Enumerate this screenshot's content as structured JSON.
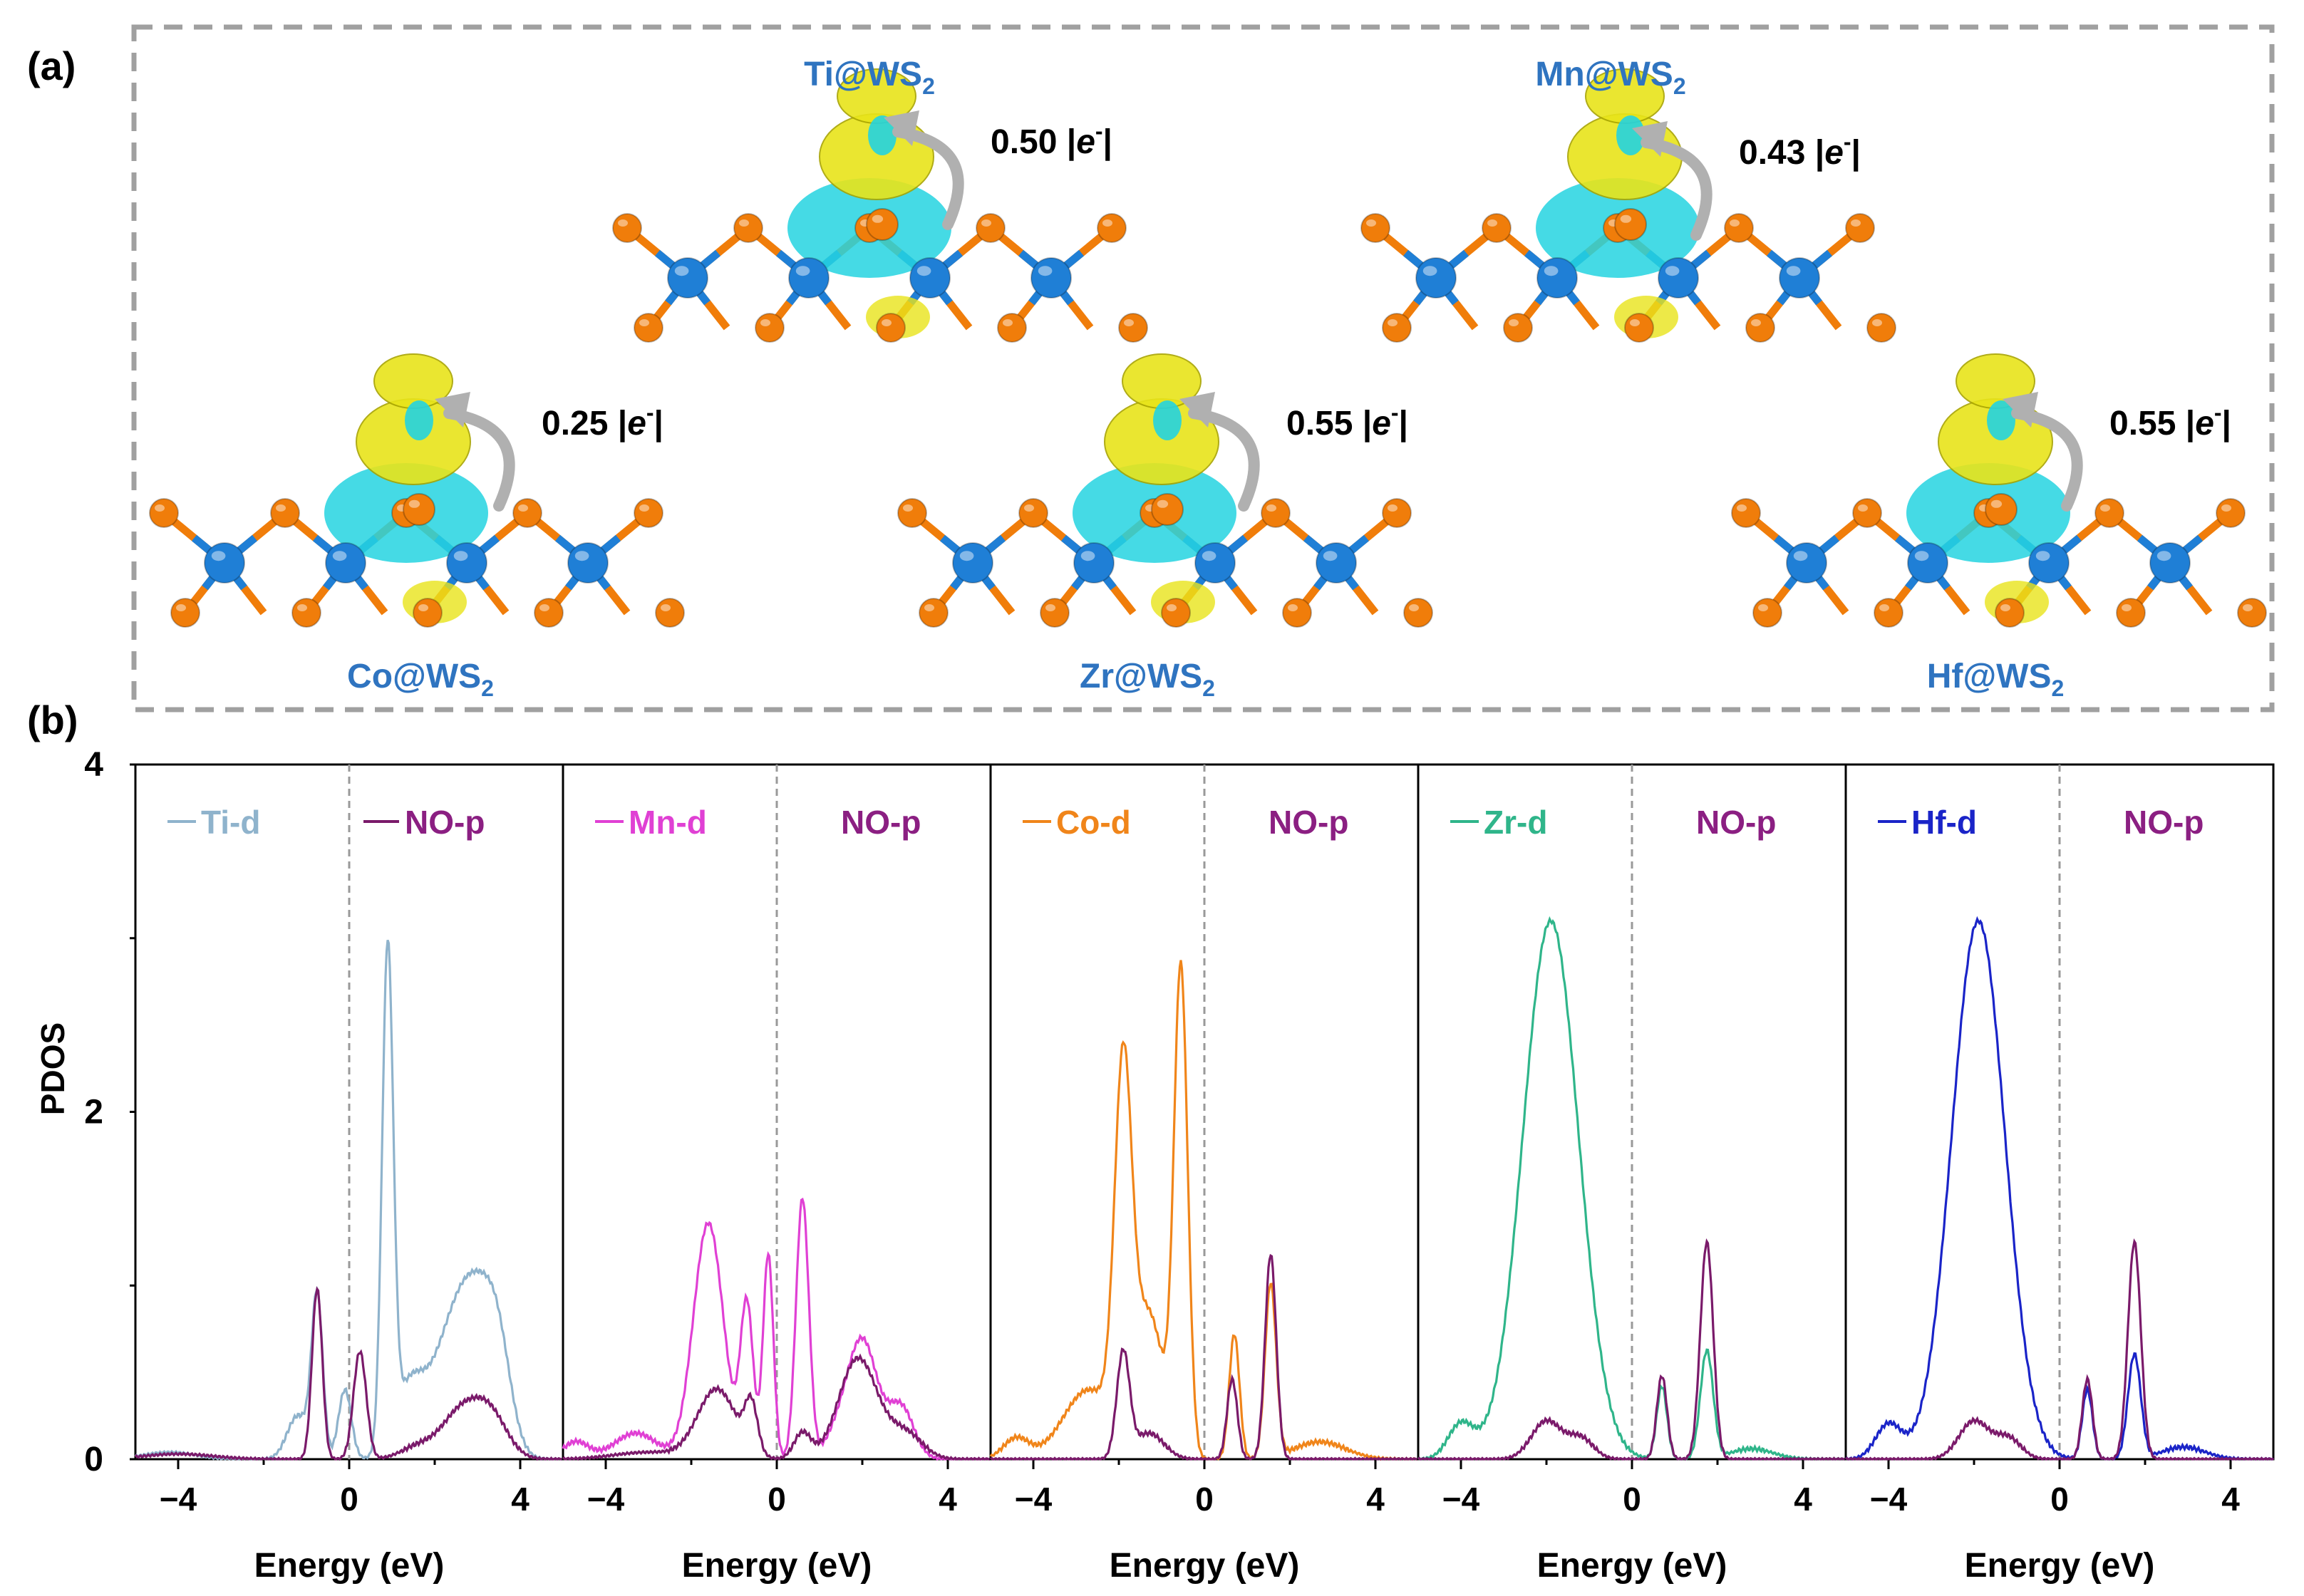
{
  "panel_a": {
    "label": "(a)",
    "structures": [
      {
        "metal": "Ti",
        "suffix": "@WS",
        "sub": "2",
        "charge": "0.50 |",
        "e": "e",
        "sup": "-",
        "close": "|"
      },
      {
        "metal": "Mn",
        "suffix": "@WS",
        "sub": "2",
        "charge": "0.43 |",
        "e": "e",
        "sup": "-",
        "close": "|"
      },
      {
        "metal": "Co",
        "suffix": "@WS",
        "sub": "2",
        "charge": "0.25 |",
        "e": "e",
        "sup": "-",
        "close": "|"
      },
      {
        "metal": "Zr",
        "suffix": "@WS",
        "sub": "2",
        "charge": "0.55 |",
        "e": "e",
        "sup": "-",
        "close": "|"
      },
      {
        "metal": "Hf",
        "suffix": "@WS",
        "sub": "2",
        "charge": "0.55 |",
        "e": "e",
        "sup": "-",
        "close": "|"
      }
    ],
    "colors": {
      "W": "#1f7fd6",
      "S": "#f07d0a",
      "iso_pos": "#e8e41a",
      "iso_neg": "#24d3e0",
      "frame": "#a0a0a0",
      "label": "#2f74c0"
    }
  },
  "panel_b": {
    "label": "(b)",
    "ylabel": "PDOS",
    "xlabel": "Energy (eV)",
    "y_ticks": [
      "0",
      "2",
      "4"
    ],
    "x_ticks": [
      "−4",
      "0",
      "4"
    ]
  },
  "chart_data": [
    {
      "type": "line",
      "title": "",
      "xlabel": "Energy (eV)",
      "ylabel": "PDOS",
      "xlim": [
        -5,
        5
      ],
      "ylim": [
        0,
        4
      ],
      "series": [
        {
          "name": "Ti-d",
          "color": "#8fb3cc",
          "peaks": [
            [
              -4.2,
              0.04,
              0.6
            ],
            [
              -1.2,
              0.25,
              0.25
            ],
            [
              -0.75,
              0.93,
              0.13
            ],
            [
              -0.1,
              0.4,
              0.15
            ],
            [
              0.9,
              2.85,
              0.13
            ],
            [
              1.4,
              0.4,
              0.35
            ],
            [
              2.3,
              0.55,
              0.45
            ],
            [
              3.0,
              0.82,
              0.45
            ],
            [
              3.5,
              0.4,
              0.3
            ]
          ]
        },
        {
          "name": "NO-p",
          "color": "#7a1a6a",
          "peaks": [
            [
              -4,
              0.03,
              0.8
            ],
            [
              -0.75,
              0.98,
              0.12
            ],
            [
              0.25,
              0.62,
              0.15
            ],
            [
              1.6,
              0.07,
              0.4
            ],
            [
              2.6,
              0.26,
              0.45
            ],
            [
              3.3,
              0.24,
              0.4
            ]
          ]
        }
      ],
      "legend_colors": {
        "Ti-d": "#8fb3cc",
        "NO-p": "#8b1f82"
      }
    },
    {
      "type": "line",
      "title": "",
      "xlabel": "Energy (eV)",
      "ylabel": "",
      "xlim": [
        -5,
        5
      ],
      "ylim": [
        0,
        4
      ],
      "series": [
        {
          "name": "Mn-d",
          "color": "#e040d4",
          "peaks": [
            [
              -4.7,
              0.1,
              0.3
            ],
            [
              -3.3,
              0.15,
              0.5
            ],
            [
              -1.6,
              1.36,
              0.35
            ],
            [
              -0.7,
              0.88,
              0.15
            ],
            [
              -0.2,
              1.18,
              0.12
            ],
            [
              0.6,
              1.5,
              0.15
            ],
            [
              1.4,
              0.12,
              0.3
            ],
            [
              2.0,
              0.68,
              0.35
            ],
            [
              2.9,
              0.3,
              0.3
            ]
          ]
        },
        {
          "name": "NO-p",
          "color": "#7a1a6a",
          "peaks": [
            [
              -3,
              0.04,
              0.8
            ],
            [
              -1.4,
              0.4,
              0.45
            ],
            [
              -0.6,
              0.28,
              0.15
            ],
            [
              0.6,
              0.15,
              0.2
            ],
            [
              1.9,
              0.58,
              0.45
            ],
            [
              3.0,
              0.15,
              0.4
            ]
          ]
        }
      ],
      "legend_colors": {
        "Mn-d": "#e040d4",
        "NO-p": "#8b1f82"
      }
    },
    {
      "type": "line",
      "title": "",
      "xlabel": "Energy (eV)",
      "ylabel": "",
      "xlim": [
        -5,
        5
      ],
      "ylim": [
        0,
        4
      ],
      "series": [
        {
          "name": "Co-d",
          "color": "#f0851a",
          "peaks": [
            [
              -4.4,
              0.12,
              0.3
            ],
            [
              -2.7,
              0.4,
              0.6
            ],
            [
              -1.9,
              2.05,
              0.2
            ],
            [
              -1.3,
              0.82,
              0.35
            ],
            [
              -0.55,
              2.78,
              0.16
            ],
            [
              0.7,
              0.72,
              0.12
            ],
            [
              1.55,
              1.0,
              0.13
            ],
            [
              2.7,
              0.1,
              0.6
            ]
          ]
        },
        {
          "name": "NO-p",
          "color": "#7a1a6a",
          "peaks": [
            [
              -1.9,
              0.6,
              0.15
            ],
            [
              -1.3,
              0.15,
              0.35
            ],
            [
              0.65,
              0.46,
              0.12
            ],
            [
              1.55,
              1.18,
              0.13
            ]
          ]
        }
      ],
      "legend_colors": {
        "Co-d": "#f0851a",
        "NO-p": "#8b1f82"
      }
    },
    {
      "type": "line",
      "title": "",
      "xlabel": "Energy (eV)",
      "ylabel": "",
      "xlim": [
        -5,
        5
      ],
      "ylim": [
        0,
        4
      ],
      "series": [
        {
          "name": "Zr-d",
          "color": "#2fb58a",
          "peaks": [
            [
              -4.0,
              0.2,
              0.3
            ],
            [
              -1.9,
              3.1,
              0.65
            ],
            [
              0.7,
              0.42,
              0.12
            ],
            [
              1.75,
              0.62,
              0.15
            ],
            [
              2.8,
              0.06,
              0.5
            ]
          ]
        },
        {
          "name": "NO-p",
          "color": "#7a1a6a",
          "peaks": [
            [
              -2.0,
              0.22,
              0.35
            ],
            [
              -1.2,
              0.12,
              0.3
            ],
            [
              0.7,
              0.48,
              0.12
            ],
            [
              1.75,
              1.25,
              0.15
            ]
          ]
        }
      ],
      "legend_colors": {
        "Zr-d": "#2fb58a",
        "NO-p": "#8b1f82"
      }
    },
    {
      "type": "line",
      "title": "",
      "xlabel": "Energy (eV)",
      "ylabel": "",
      "xlim": [
        -5,
        5
      ],
      "ylim": [
        0,
        4
      ],
      "series": [
        {
          "name": "Hf-d",
          "color": "#1a24c8",
          "peaks": [
            [
              -4.0,
              0.2,
              0.3
            ],
            [
              -1.9,
              3.1,
              0.62
            ],
            [
              0.65,
              0.4,
              0.12
            ],
            [
              1.75,
              0.6,
              0.15
            ],
            [
              2.9,
              0.07,
              0.5
            ]
          ]
        },
        {
          "name": "NO-p",
          "color": "#7a1a6a",
          "peaks": [
            [
              -2.0,
              0.22,
              0.35
            ],
            [
              -1.2,
              0.12,
              0.3
            ],
            [
              0.65,
              0.46,
              0.12
            ],
            [
              1.75,
              1.25,
              0.15
            ]
          ]
        }
      ],
      "legend_colors": {
        "Hf-d": "#1a24c8",
        "NO-p": "#8b1f82"
      }
    }
  ]
}
